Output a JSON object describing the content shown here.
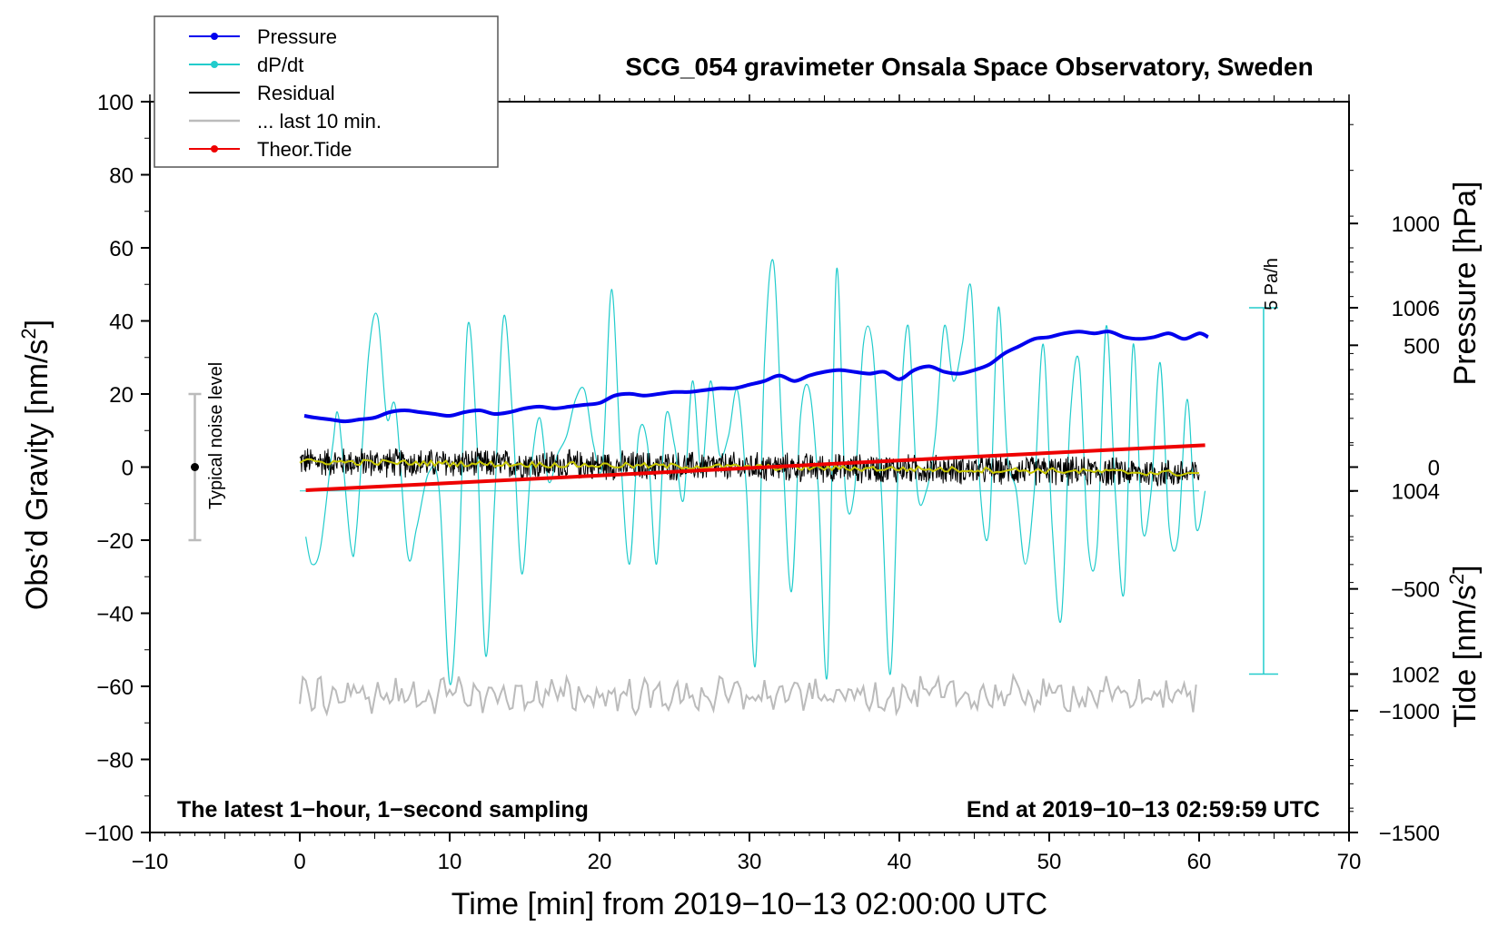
{
  "chart_data": {
    "type": "line",
    "title": "SCG_054 gravimeter Onsala Space Observatory, Sweden",
    "xlabel": "Time [min] from 2019−10−13 02:00:00 UTC",
    "ylabel_left": "Obs’d Gravity [nm/s",
    "ylabel_left_sup": "2",
    "ylabel_left_end": "]",
    "ylabel_pressure": "Pressure [hPa]",
    "ylabel_tide": "Tide [nm/s",
    "ylabel_tide_sup": "2",
    "ylabel_tide_end": "]",
    "xlim": [
      -10,
      70
    ],
    "ylim": [
      -100,
      100
    ],
    "pressure_lim": [
      1000.27,
      1008.25
    ],
    "tide_lim": [
      -1500,
      1500
    ],
    "x_ticks": [
      {
        "v": -10,
        "t": "−10"
      },
      {
        "v": 0,
        "t": "0"
      },
      {
        "v": 10,
        "t": "10"
      },
      {
        "v": 20,
        "t": "20"
      },
      {
        "v": 30,
        "t": "30"
      },
      {
        "v": 40,
        "t": "40"
      },
      {
        "v": 50,
        "t": "50"
      },
      {
        "v": 60,
        "t": "60"
      },
      {
        "v": 70,
        "t": "70"
      }
    ],
    "y_ticks": [
      {
        "v": 100,
        "t": "100"
      },
      {
        "v": 80,
        "t": "80"
      },
      {
        "v": 60,
        "t": "60"
      },
      {
        "v": 40,
        "t": "40"
      },
      {
        "v": 20,
        "t": "20"
      },
      {
        "v": 0,
        "t": "0"
      },
      {
        "v": -20,
        "t": "−20"
      },
      {
        "v": -40,
        "t": "−40"
      },
      {
        "v": -60,
        "t": "−60"
      },
      {
        "v": -80,
        "t": "−80"
      },
      {
        "v": -100,
        "t": "−100"
      }
    ],
    "pressure_ticks": [
      {
        "v": 1006,
        "t": "1006"
      },
      {
        "v": 1004,
        "t": "1004"
      },
      {
        "v": 1002,
        "t": "1002"
      }
    ],
    "tide_ticks": [
      {
        "v": 1000,
        "t": "1000"
      },
      {
        "v": 500,
        "t": "500"
      },
      {
        "v": 0,
        "t": "0"
      },
      {
        "v": -500,
        "t": "−500"
      },
      {
        "v": -1000,
        "t": "−1000"
      },
      {
        "v": -1500,
        "t": "−1500"
      }
    ],
    "legend": [
      {
        "label": "Pressure",
        "color": "#0000ee",
        "marker": true
      },
      {
        "label": "dP/dt",
        "color": "#22cccc",
        "marker": true
      },
      {
        "label": "Residual",
        "color": "#000000",
        "marker": false
      },
      {
        "label": "... last 10 min.",
        "color": "#bbbbbb",
        "marker": false
      },
      {
        "label": "Theor.Tide",
        "color": "#ee0000",
        "marker": true
      }
    ],
    "series": [
      {
        "name": "Pressure",
        "axis": "pressure",
        "color": "#0000ee",
        "x": [
          0.3,
          1,
          2,
          3,
          4,
          5,
          6,
          7,
          8,
          9,
          10,
          11,
          12,
          13,
          14,
          15,
          16,
          17,
          18,
          19,
          20,
          21,
          22,
          23,
          24,
          25,
          26,
          27,
          28,
          29,
          30,
          31,
          32,
          33,
          34,
          35,
          36,
          37,
          38,
          39,
          40,
          41,
          42,
          43,
          44,
          45,
          46,
          47,
          48,
          49,
          50,
          51,
          52,
          53,
          54,
          55,
          56,
          57,
          58,
          59,
          60,
          60.6
        ],
        "values": [
          1004.82,
          1004.8,
          1004.78,
          1004.76,
          1004.78,
          1004.8,
          1004.86,
          1004.88,
          1004.86,
          1004.84,
          1004.82,
          1004.86,
          1004.88,
          1004.84,
          1004.86,
          1004.9,
          1004.92,
          1004.9,
          1004.92,
          1004.94,
          1004.96,
          1005.04,
          1005.06,
          1005.04,
          1005.06,
          1005.08,
          1005.08,
          1005.1,
          1005.12,
          1005.12,
          1005.16,
          1005.2,
          1005.26,
          1005.2,
          1005.26,
          1005.3,
          1005.32,
          1005.3,
          1005.28,
          1005.3,
          1005.22,
          1005.32,
          1005.36,
          1005.3,
          1005.28,
          1005.32,
          1005.38,
          1005.5,
          1005.58,
          1005.66,
          1005.68,
          1005.72,
          1005.74,
          1005.72,
          1005.74,
          1005.68,
          1005.66,
          1005.68,
          1005.72,
          1005.66,
          1005.72,
          1005.68
        ]
      },
      {
        "name": "dP/dt",
        "axis": "pressure",
        "color": "#22cccc",
        "zero": 1004.0,
        "scale_bar": [
          1002,
          1006
        ],
        "scale_label": "5 Pa/h",
        "x": [
          0.4,
          0.8,
          1.4,
          2.2,
          2.6,
          3.4,
          3.8,
          4.6,
          5.2,
          5.8,
          6.4,
          7.2,
          7.8,
          8.6,
          9.3,
          10.0,
          10.6,
          11.2,
          11.8,
          12.4,
          13.0,
          13.6,
          14.2,
          14.8,
          15.4,
          16.0,
          16.6,
          17.2,
          17.8,
          18.4,
          19.0,
          19.6,
          20.2,
          20.8,
          21.4,
          22.0,
          22.6,
          23.2,
          23.8,
          24.4,
          25.0,
          25.6,
          26.2,
          26.8,
          27.4,
          28.0,
          28.6,
          29.2,
          29.8,
          30.4,
          31.0,
          31.6,
          32.2,
          32.8,
          33.4,
          34.0,
          34.6,
          35.2,
          35.8,
          36.4,
          37.0,
          37.6,
          38.2,
          38.8,
          39.4,
          40.0,
          40.6,
          41.2,
          41.8,
          42.4,
          43.0,
          43.6,
          44.2,
          44.8,
          45.4,
          46.0,
          46.6,
          47.2,
          47.8,
          48.4,
          49.0,
          49.6,
          50.2,
          50.8,
          51.4,
          52.0,
          52.6,
          53.2,
          53.8,
          54.4,
          55.0,
          55.6,
          56.2,
          56.8,
          57.4,
          58.0,
          58.6,
          59.2,
          59.8,
          60.4
        ],
        "values": [
          1003.5,
          1003.2,
          1003.4,
          1004.5,
          1004.8,
          1003.4,
          1003.6,
          1005.5,
          1005.9,
          1004.8,
          1004.9,
          1003.3,
          1003.6,
          1004.2,
          1004.0,
          1001.9,
          1003.2,
          1005.8,
          1004.6,
          1002.2,
          1003.9,
          1005.9,
          1004.8,
          1003.1,
          1004.2,
          1004.8,
          1004.1,
          1004.4,
          1004.6,
          1005.0,
          1005.1,
          1004.5,
          1004.3,
          1006.2,
          1004.4,
          1003.2,
          1004.6,
          1004.5,
          1003.2,
          1004.8,
          1004.5,
          1003.9,
          1005.2,
          1004.2,
          1005.2,
          1004.4,
          1004.6,
          1005.1,
          1004.0,
          1002.1,
          1005.4,
          1006.5,
          1004.5,
          1002.9,
          1004.8,
          1005.1,
          1004.0,
          1002.0,
          1006.4,
          1004.0,
          1004.0,
          1005.6,
          1005.6,
          1004.0,
          1002.0,
          1004.6,
          1005.8,
          1004.0,
          1004.0,
          1004.6,
          1005.8,
          1005.2,
          1005.6,
          1006.2,
          1004.0,
          1003.6,
          1006.0,
          1004.4,
          1004.0,
          1003.2,
          1004.0,
          1005.6,
          1003.6,
          1002.6,
          1004.8,
          1005.4,
          1003.4,
          1003.4,
          1005.8,
          1004.0,
          1002.9,
          1005.6,
          1003.6,
          1004.0,
          1005.4,
          1003.6,
          1003.5,
          1005.0,
          1003.6,
          1004.0
        ]
      },
      {
        "name": "Residual",
        "axis": "gravity",
        "color": "#000000",
        "noise_amplitude": 4.5,
        "x": [
          0,
          10,
          20,
          30,
          40,
          50,
          60
        ],
        "values": [
          1.5,
          1.0,
          0.5,
          0.0,
          -0.5,
          -1.0,
          -1.8
        ]
      },
      {
        "name": "Residual (smoothed)",
        "axis": "gravity",
        "color": "#c8c800",
        "x": [
          0,
          10,
          20,
          30,
          40,
          50,
          60
        ],
        "values": [
          1.5,
          1.0,
          0.5,
          0.0,
          -0.5,
          -1.0,
          -1.8
        ]
      },
      {
        "name": "... last 10 min.",
        "axis": "gravity",
        "color": "#bbbbbb",
        "noise_amplitude": 3.5,
        "x": [
          0,
          60
        ],
        "values": [
          -62.5,
          -62.5
        ]
      },
      {
        "name": "Theor.Tide",
        "axis": "tide",
        "color": "#ee0000",
        "x": [
          0.4,
          60.4
        ],
        "values": [
          -95,
          90
        ]
      }
    ],
    "noise_bar": {
      "x": -7,
      "range": [
        -20,
        20
      ],
      "center": 0,
      "label": "Typical noise level"
    },
    "annotation_left": "The latest 1−hour, 1−second sampling",
    "annotation_right": "End at 2019−10−13 02:59:59 UTC"
  }
}
